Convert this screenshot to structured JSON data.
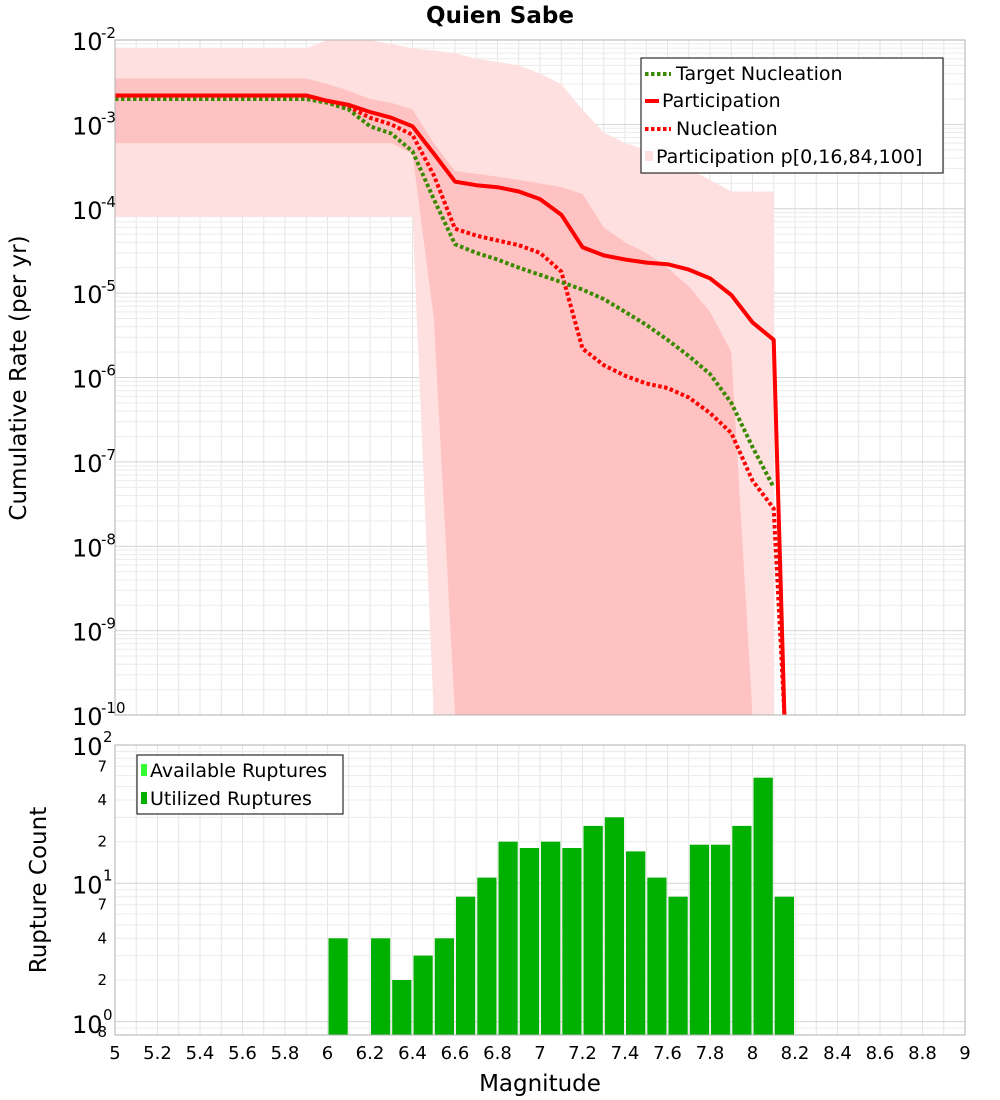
{
  "chart_data": [
    {
      "type": "line",
      "title": "Quien Sabe",
      "xlabel": "",
      "ylabel": "Cumulative Rate (per yr)",
      "xlim": [
        5,
        9
      ],
      "ylim": [
        1e-10,
        0.01
      ],
      "yscale": "log",
      "grid": true,
      "legend_position": "top-right",
      "y_tick_labels": [
        {
          "base": "10",
          "exp": "-2",
          "value": 0.01
        },
        {
          "base": "10",
          "exp": "-3",
          "value": 0.001
        },
        {
          "base": "10",
          "exp": "-4",
          "value": 0.0001
        },
        {
          "base": "10",
          "exp": "-5",
          "value": 1e-05
        },
        {
          "base": "10",
          "exp": "-6",
          "value": 1e-06
        },
        {
          "base": "10",
          "exp": "-7",
          "value": 1e-07
        },
        {
          "base": "10",
          "exp": "-8",
          "value": 1e-08
        },
        {
          "base": "10",
          "exp": "-9",
          "value": 1e-09
        },
        {
          "base": "10",
          "exp": "-10",
          "value": 1e-10
        }
      ],
      "series": [
        {
          "name": "Target Nucleation",
          "color": "#3a8a00",
          "dash": "dotted",
          "x": [
            5.0,
            5.9,
            6.0,
            6.1,
            6.2,
            6.3,
            6.4,
            6.5,
            6.6,
            6.7,
            6.8,
            6.9,
            7.0,
            7.1,
            7.2,
            7.3,
            7.4,
            7.5,
            7.6,
            7.7,
            7.8,
            7.9,
            8.0,
            8.1
          ],
          "y": [
            0.002,
            0.002,
            0.0018,
            0.0015,
            0.00095,
            0.00078,
            0.00048,
            0.00013,
            3.8e-05,
            3e-05,
            2.5e-05,
            2e-05,
            1.65e-05,
            1.35e-05,
            1.1e-05,
            8.5e-06,
            6e-06,
            4.2e-06,
            2.8e-06,
            1.8e-06,
            1.1e-06,
            5e-07,
            1.5e-07,
            5e-08
          ]
        },
        {
          "name": "Participation",
          "color": "#ff0000",
          "dash": "solid",
          "x": [
            5.0,
            5.9,
            6.0,
            6.1,
            6.2,
            6.3,
            6.4,
            6.5,
            6.6,
            6.7,
            6.8,
            6.9,
            7.0,
            7.1,
            7.2,
            7.3,
            7.4,
            7.5,
            7.6,
            7.7,
            7.8,
            7.9,
            8.0,
            8.1,
            8.15
          ],
          "y": [
            0.0022,
            0.0022,
            0.0019,
            0.0017,
            0.0014,
            0.0012,
            0.00095,
            0.00045,
            0.00021,
            0.00019,
            0.00018,
            0.00016,
            0.00013,
            8.5e-05,
            3.5e-05,
            2.8e-05,
            2.5e-05,
            2.3e-05,
            2.2e-05,
            1.9e-05,
            1.5e-05,
            9.5e-06,
            4.5e-06,
            2.8e-06,
            1e-10
          ]
        },
        {
          "name": "Nucleation",
          "color": "#ff0000",
          "dash": "dotted",
          "x": [
            5.0,
            5.9,
            6.0,
            6.1,
            6.2,
            6.3,
            6.4,
            6.5,
            6.6,
            6.7,
            6.8,
            6.9,
            7.0,
            7.1,
            7.2,
            7.3,
            7.4,
            7.5,
            7.6,
            7.7,
            7.8,
            7.9,
            8.0,
            8.1,
            8.15
          ],
          "y": [
            0.0021,
            0.0021,
            0.0019,
            0.0016,
            0.0012,
            0.001,
            0.00075,
            0.00025,
            5.8e-05,
            4.8e-05,
            4.2e-05,
            3.7e-05,
            3e-05,
            1.8e-05,
            2.2e-06,
            1.4e-06,
            1.05e-06,
            8.5e-07,
            7.5e-07,
            5.8e-07,
            3.8e-07,
            2.2e-07,
            6e-08,
            2.8e-08,
            1e-10
          ]
        },
        {
          "name": "Participation p[0,16,84,100]",
          "color": "#ffcccc",
          "dash": "band",
          "x": [
            5.0,
            5.9,
            6.0,
            6.1,
            6.2,
            6.3,
            6.4,
            6.5,
            6.6,
            6.7,
            6.8,
            6.9,
            7.0,
            7.1,
            7.2,
            7.3,
            7.4,
            7.5,
            7.6,
            7.7,
            7.8,
            7.9,
            8.0,
            8.1
          ],
          "p0": [
            8e-05,
            8e-05,
            8e-05,
            8e-05,
            8e-05,
            8e-05,
            8e-05,
            1e-10,
            1e-10,
            1e-10,
            1e-10,
            1e-10,
            1e-10,
            1e-10,
            1e-10,
            1e-10,
            1e-10,
            1e-10,
            1e-10,
            1e-10,
            1e-10,
            1e-10,
            1e-10,
            1e-10
          ],
          "p16": [
            0.0006,
            0.0006,
            0.0006,
            0.0006,
            0.0006,
            0.0006,
            0.00045,
            5e-06,
            1e-10,
            1e-10,
            1e-10,
            1e-10,
            1e-10,
            1e-10,
            1e-10,
            1e-10,
            1e-10,
            1e-10,
            1e-10,
            1e-10,
            1e-10,
            1e-10,
            1e-10,
            1e-10
          ],
          "p84": [
            0.0035,
            0.0035,
            0.003,
            0.0025,
            0.002,
            0.0018,
            0.0015,
            0.0006,
            0.00028,
            0.00026,
            0.00024,
            0.00022,
            0.0002,
            0.00018,
            0.00015,
            6e-05,
            4e-05,
            3e-05,
            2e-05,
            1.2e-05,
            6e-06,
            2e-06,
            1e-10,
            1e-10
          ],
          "p100": [
            0.008,
            0.008,
            0.01,
            0.01,
            0.01,
            0.009,
            0.008,
            0.0075,
            0.007,
            0.006,
            0.0055,
            0.005,
            0.004,
            0.003,
            0.0015,
            0.0008,
            0.0006,
            0.0005,
            0.0004,
            0.0003,
            0.00022,
            0.00016,
            0.00016,
            0.00016
          ]
        }
      ]
    },
    {
      "type": "bar",
      "xlabel": "Magnitude",
      "ylabel": "Rupture Count",
      "xlim": [
        5,
        9
      ],
      "ylim": [
        0.8,
        100
      ],
      "yscale": "log",
      "grid": true,
      "legend_position": "top-left",
      "bar_width": 0.1,
      "x_ticks": [
        "5",
        "5.2",
        "5.4",
        "5.6",
        "5.8",
        "6",
        "6.2",
        "6.4",
        "6.6",
        "6.8",
        "7",
        "7.2",
        "7.4",
        "7.6",
        "7.8",
        "8",
        "8.2",
        "8.4",
        "8.6",
        "8.8",
        "9"
      ],
      "y_tick_labels": [
        {
          "base": "10",
          "exp": "2",
          "value": 100
        },
        {
          "base": "10",
          "exp": "1",
          "value": 10
        },
        {
          "base": "10",
          "exp": "0",
          "value": 1
        }
      ],
      "y_minor_labels": [
        {
          "label": "7",
          "value": 70
        },
        {
          "label": "4",
          "value": 40
        },
        {
          "label": "2",
          "value": 20
        },
        {
          "label": "7",
          "value": 7
        },
        {
          "label": "4",
          "value": 4
        },
        {
          "label": "2",
          "value": 2
        },
        {
          "label": "8",
          "value": 0.8
        }
      ],
      "series": [
        {
          "name": "Available Ruptures",
          "color": "#33ff33",
          "x": [
            6.05,
            6.25,
            6.35,
            6.45,
            6.55,
            6.65,
            6.75,
            6.85,
            6.95,
            7.05,
            7.15,
            7.25,
            7.35,
            7.45,
            7.55,
            7.65,
            7.75,
            7.85,
            7.95,
            8.05,
            8.15
          ],
          "values": [
            4,
            4,
            2,
            3,
            4,
            8,
            11,
            20,
            18,
            20,
            18,
            26,
            30,
            17,
            11,
            8,
            19,
            19,
            26,
            58,
            8
          ]
        },
        {
          "name": "Utilized Ruptures",
          "color": "#00b000",
          "x": [
            6.05,
            6.25,
            6.35,
            6.45,
            6.55,
            6.65,
            6.75,
            6.85,
            6.95,
            7.05,
            7.15,
            7.25,
            7.35,
            7.45,
            7.55,
            7.65,
            7.75,
            7.85,
            7.95,
            8.05,
            8.15
          ],
          "values": [
            4,
            4,
            2,
            3,
            4,
            8,
            11,
            20,
            18,
            20,
            18,
            26,
            30,
            17,
            11,
            8,
            19,
            19,
            26,
            58,
            8
          ]
        }
      ]
    }
  ]
}
